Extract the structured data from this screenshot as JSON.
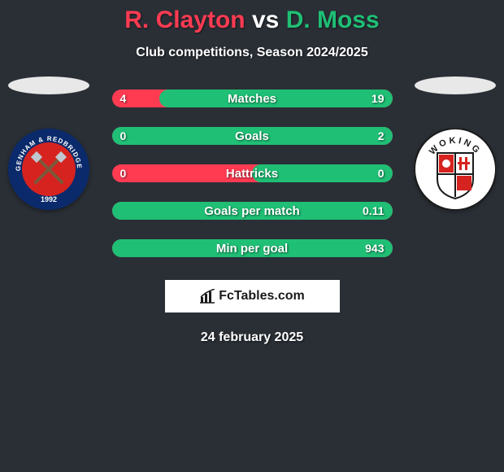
{
  "background_color": "#2a2f36",
  "header": {
    "player1": "R. Clayton",
    "player1_color": "#ff3b52",
    "vs": "vs",
    "vs_color": "#ffffff",
    "player2": "D. Moss",
    "player2_color": "#1fbf75",
    "subtitle": "Club competitions, Season 2024/2025"
  },
  "avatars": {
    "blank_color": "#e8e8e8"
  },
  "clubs": {
    "left": {
      "name": "Dagenham & Redbridge FC",
      "year": "1992",
      "ring_color": "#0a2a6b",
      "inner_color": "#d6231f",
      "text_color": "#ffffff"
    },
    "right": {
      "name": "Woking",
      "shield_bg": "#ffffff",
      "shield_border": "#1a1a1a",
      "accent_color": "#d6231f",
      "ring_color": "#ffffff"
    }
  },
  "stats": {
    "bar_bg_left_color": "#ff3b52",
    "bar_bg_right_color": "#1fbf75",
    "rows": [
      {
        "label": "Matches",
        "left": "4",
        "right": "19",
        "right_fill_pct": 83
      },
      {
        "label": "Goals",
        "left": "0",
        "right": "2",
        "right_fill_pct": 100
      },
      {
        "label": "Hattricks",
        "left": "0",
        "right": "0",
        "right_fill_pct": 50
      },
      {
        "label": "Goals per match",
        "left": "",
        "right": "0.11",
        "right_fill_pct": 100
      },
      {
        "label": "Min per goal",
        "left": "",
        "right": "943",
        "right_fill_pct": 100
      }
    ]
  },
  "brand": {
    "text": "FcTables.com",
    "icon_color": "#1a1a1a"
  },
  "date": "24 february 2025"
}
